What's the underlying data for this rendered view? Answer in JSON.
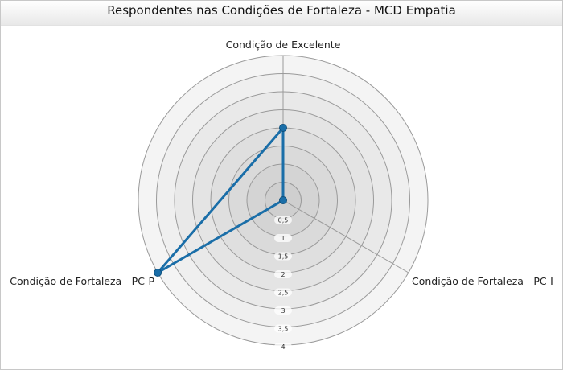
{
  "chart_data": {
    "type": "radar",
    "title": "Respondentes nas Condições de Fortaleza - MCD Empatia",
    "categories": [
      "Condição de Excelente",
      "Condição de Fortaleza - PC-I",
      "Condição de Fortaleza - PC-P"
    ],
    "series": [
      {
        "name": "Respondentes",
        "values": [
          2,
          0,
          4
        ]
      }
    ],
    "rmax": 4,
    "ticks": [
      "0,5",
      "1",
      "1,5",
      "2",
      "2,5",
      "3",
      "3,5",
      "4"
    ],
    "tick_values": [
      0.5,
      1,
      1.5,
      2,
      2.5,
      3,
      3.5,
      4
    ],
    "legend": "none"
  },
  "colors": {
    "series": "#1a6ea8",
    "ring_outer": "#f4f4f4",
    "ring_inner": "#cfcfcf",
    "grid": "#9a9a9a"
  }
}
